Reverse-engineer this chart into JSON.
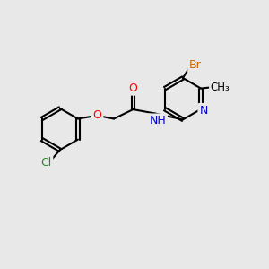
{
  "bg_color": "#e8e8e8",
  "bond_color": "#000000",
  "bond_width": 1.5,
  "dbo": 0.055,
  "atom_colors": {
    "O": "#ff0000",
    "N": "#0000cc",
    "Cl": "#228B22",
    "Br": "#cc6600",
    "C": "#000000"
  },
  "figsize": [
    3.0,
    3.0
  ],
  "dpi": 100
}
